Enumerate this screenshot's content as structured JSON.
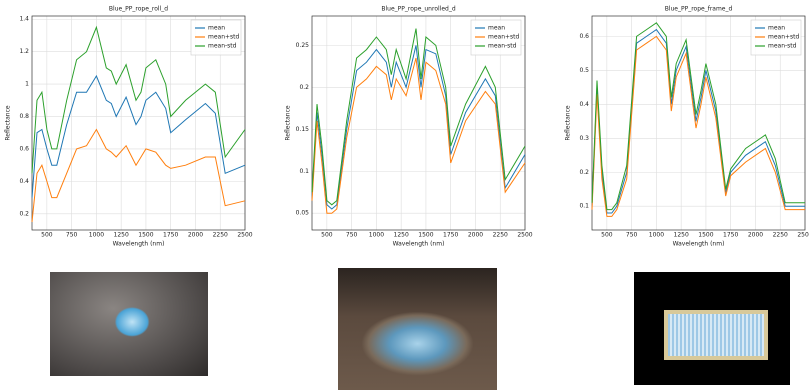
{
  "chart_data": [
    {
      "type": "line",
      "title": "Blue_PP_rope_roll_d",
      "x_label": "Wavelength (nm)",
      "y_label": "Reflectance",
      "x": [
        350,
        400,
        450,
        500,
        550,
        600,
        700,
        800,
        900,
        1000,
        1100,
        1150,
        1200,
        1300,
        1400,
        1450,
        1500,
        1600,
        1700,
        1750,
        1900,
        2100,
        2200,
        2300,
        2500
      ],
      "series": [
        {
          "name": "mean",
          "color": "#1f77b4",
          "values": [
            0.3,
            0.7,
            0.72,
            0.6,
            0.5,
            0.5,
            0.75,
            0.95,
            0.95,
            1.05,
            0.9,
            0.88,
            0.8,
            0.92,
            0.75,
            0.8,
            0.9,
            0.95,
            0.85,
            0.7,
            0.78,
            0.88,
            0.82,
            0.45,
            0.5
          ]
        },
        {
          "name": "mean+std",
          "color": "#ff7f0e",
          "values": [
            0.15,
            0.45,
            0.5,
            0.4,
            0.3,
            0.3,
            0.45,
            0.6,
            0.62,
            0.72,
            0.6,
            0.58,
            0.55,
            0.62,
            0.5,
            0.55,
            0.6,
            0.58,
            0.5,
            0.48,
            0.5,
            0.55,
            0.55,
            0.25,
            0.28
          ]
        },
        {
          "name": "mean-std",
          "color": "#2ca02c",
          "values": [
            0.45,
            0.9,
            0.95,
            0.72,
            0.6,
            0.6,
            0.9,
            1.15,
            1.2,
            1.35,
            1.1,
            1.08,
            1.0,
            1.12,
            0.9,
            0.95,
            1.1,
            1.15,
            1.0,
            0.8,
            0.9,
            1.0,
            0.95,
            0.55,
            0.72
          ]
        }
      ],
      "xlim": [
        350,
        2500
      ],
      "xticks": [
        500,
        750,
        1000,
        1250,
        1500,
        1750,
        2000,
        2250,
        2500
      ],
      "ylim": [
        0.1,
        1.42
      ],
      "yticks": [
        0.2,
        0.4,
        0.6,
        0.8,
        1.0,
        1.2,
        1.4
      ],
      "grid": true,
      "legend": "upper right"
    },
    {
      "type": "line",
      "title": "Blue_PP_rope_unrolled_d",
      "x_label": "Wavelength (nm)",
      "y_label": "Reflectance",
      "x": [
        350,
        400,
        450,
        500,
        550,
        600,
        700,
        800,
        900,
        1000,
        1100,
        1150,
        1200,
        1300,
        1400,
        1450,
        1500,
        1600,
        1700,
        1750,
        1900,
        2100,
        2200,
        2300,
        2500
      ],
      "series": [
        {
          "name": "mean",
          "color": "#1f77b4",
          "values": [
            0.07,
            0.17,
            0.12,
            0.06,
            0.055,
            0.06,
            0.15,
            0.22,
            0.23,
            0.245,
            0.23,
            0.2,
            0.23,
            0.2,
            0.25,
            0.2,
            0.245,
            0.24,
            0.19,
            0.12,
            0.17,
            0.21,
            0.19,
            0.08,
            0.12
          ]
        },
        {
          "name": "mean+std",
          "color": "#ff7f0e",
          "values": [
            0.065,
            0.16,
            0.11,
            0.05,
            0.05,
            0.055,
            0.14,
            0.2,
            0.21,
            0.225,
            0.215,
            0.185,
            0.21,
            0.19,
            0.235,
            0.185,
            0.23,
            0.22,
            0.18,
            0.11,
            0.16,
            0.195,
            0.18,
            0.075,
            0.11
          ]
        },
        {
          "name": "mean-std",
          "color": "#2ca02c",
          "values": [
            0.075,
            0.18,
            0.13,
            0.065,
            0.06,
            0.065,
            0.16,
            0.235,
            0.245,
            0.26,
            0.245,
            0.215,
            0.245,
            0.21,
            0.27,
            0.21,
            0.26,
            0.25,
            0.2,
            0.13,
            0.18,
            0.225,
            0.2,
            0.09,
            0.13
          ]
        }
      ],
      "xlim": [
        350,
        2500
      ],
      "xticks": [
        500,
        750,
        1000,
        1250,
        1500,
        1750,
        2000,
        2250,
        2500
      ],
      "ylim": [
        0.03,
        0.285
      ],
      "yticks": [
        0.05,
        0.1,
        0.15,
        0.2,
        0.25
      ],
      "grid": true,
      "legend": "upper right"
    },
    {
      "type": "line",
      "title": "Blue_PP_rope_frame_d",
      "x_label": "Wavelength (nm)",
      "y_label": "Reflectance",
      "x": [
        350,
        400,
        450,
        500,
        550,
        600,
        700,
        800,
        900,
        1000,
        1100,
        1150,
        1200,
        1300,
        1400,
        1450,
        1500,
        1600,
        1700,
        1750,
        1900,
        2100,
        2200,
        2300,
        2500
      ],
      "series": [
        {
          "name": "mean",
          "color": "#1f77b4",
          "values": [
            0.1,
            0.45,
            0.2,
            0.08,
            0.08,
            0.1,
            0.2,
            0.58,
            0.6,
            0.62,
            0.58,
            0.4,
            0.5,
            0.57,
            0.35,
            0.42,
            0.5,
            0.38,
            0.14,
            0.2,
            0.25,
            0.29,
            0.22,
            0.1,
            0.1
          ]
        },
        {
          "name": "mean+std",
          "color": "#ff7f0e",
          "values": [
            0.09,
            0.43,
            0.18,
            0.07,
            0.07,
            0.09,
            0.18,
            0.56,
            0.58,
            0.6,
            0.56,
            0.38,
            0.48,
            0.55,
            0.33,
            0.4,
            0.48,
            0.36,
            0.13,
            0.19,
            0.23,
            0.27,
            0.2,
            0.09,
            0.09
          ]
        },
        {
          "name": "mean-std",
          "color": "#2ca02c",
          "values": [
            0.11,
            0.47,
            0.22,
            0.09,
            0.09,
            0.11,
            0.22,
            0.6,
            0.62,
            0.64,
            0.6,
            0.42,
            0.52,
            0.59,
            0.37,
            0.44,
            0.52,
            0.4,
            0.15,
            0.21,
            0.27,
            0.31,
            0.24,
            0.11,
            0.11
          ]
        }
      ],
      "xlim": [
        350,
        2500
      ],
      "xticks": [
        500,
        750,
        1000,
        1250,
        1500,
        1750,
        2000,
        2250,
        2500
      ],
      "ylim": [
        0.03,
        0.66
      ],
      "yticks": [
        0.1,
        0.2,
        0.3,
        0.4,
        0.5,
        0.6
      ],
      "grid": true,
      "legend": "upper right"
    }
  ]
}
